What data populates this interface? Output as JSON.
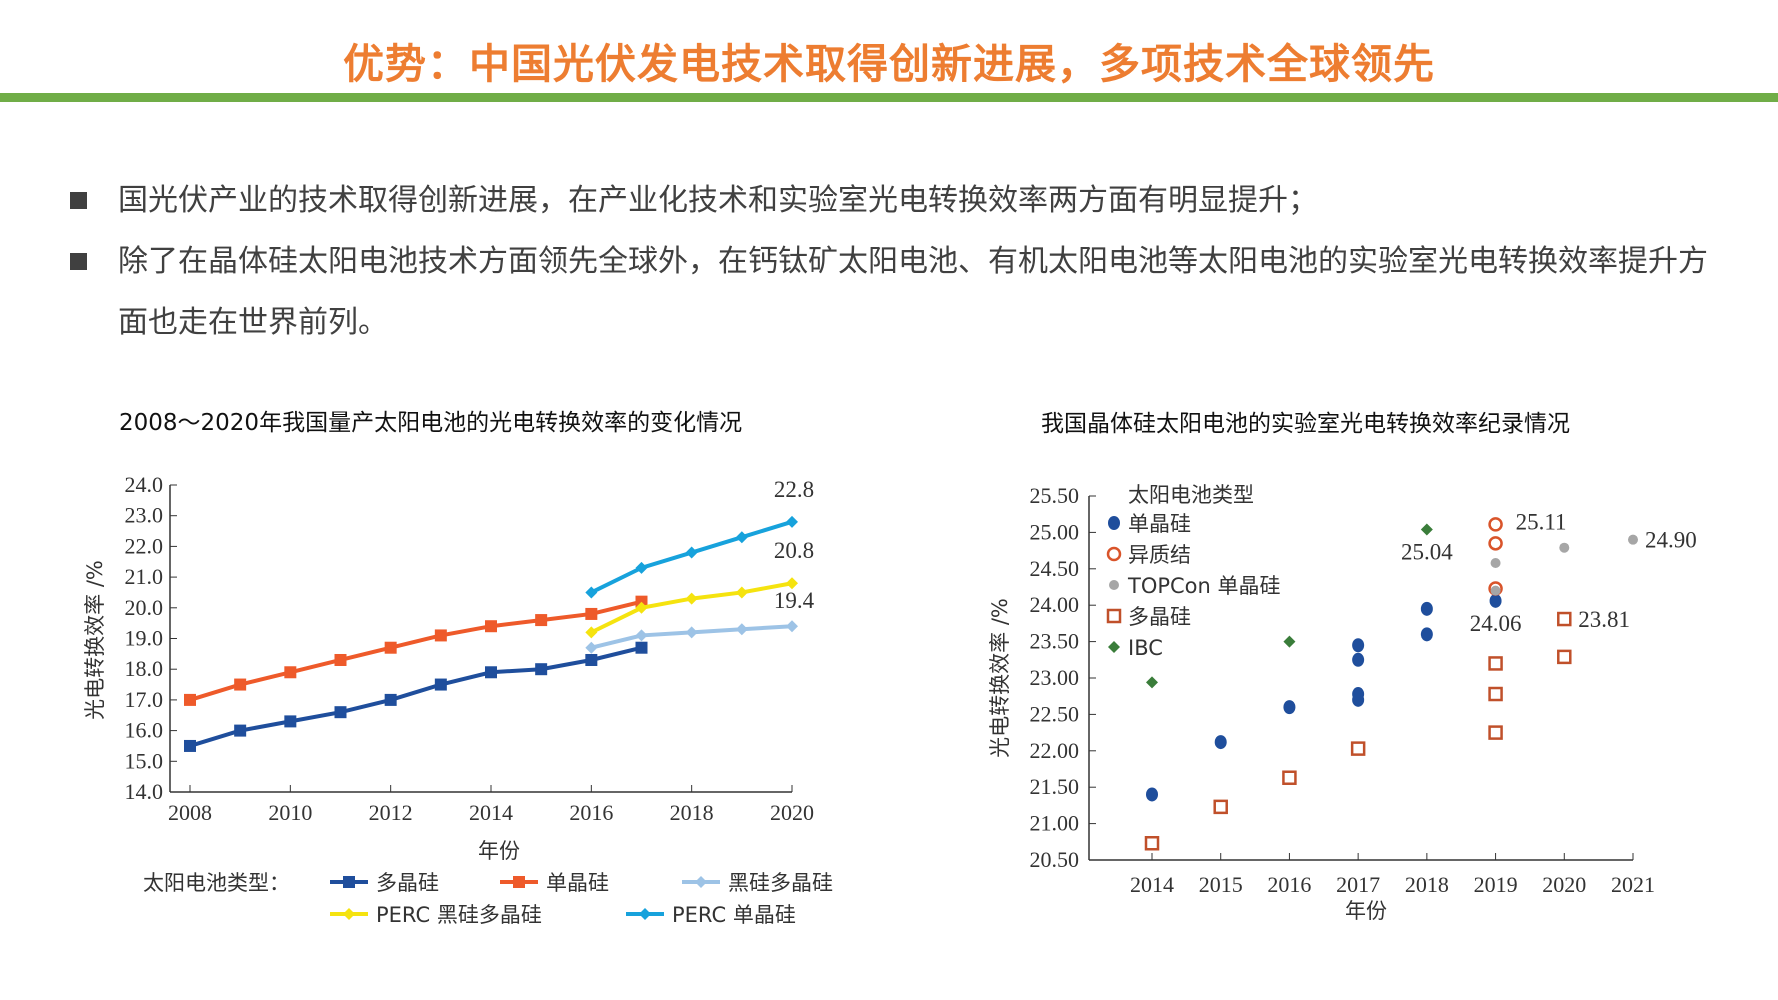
{
  "header": {
    "title": "优势：中国光伏发电技术取得创新进展，多项技术全球领先",
    "accent_color": "#ED7D31",
    "bar_color": "#70AD47"
  },
  "bullets": [
    "国光伏产业的技术取得创新进展，在产业化技术和实验室光电转换效率两方面有明显提升；",
    "除了在晶体硅太阳电池技术方面领先全球外，在钙钛矿太阳电池、有机太阳电池等太阳电池的实验室光电转换效率提升方面也走在世界前列。"
  ],
  "chart_data": [
    {
      "type": "line",
      "title": "2008～2020年我国量产太阳电池的光电转换效率的变化情况",
      "xlabel": "年份",
      "ylabel": "光电转换效率 /%",
      "xlim": [
        2008,
        2020
      ],
      "ylim": [
        14.0,
        24.0
      ],
      "xticks": [
        "2008",
        "2010",
        "2012",
        "2014",
        "2016",
        "2018",
        "2020"
      ],
      "yticks": [
        "14.0",
        "15.0",
        "16.0",
        "17.0",
        "18.0",
        "19.0",
        "20.0",
        "21.0",
        "22.0",
        "23.0",
        "24.0"
      ],
      "legend_title": "太阳电池类型：",
      "legend_position": "bottom",
      "series": [
        {
          "name": "多晶硅",
          "color": "#1F4E9C",
          "marker": "square",
          "x": [
            2008,
            2009,
            2010,
            2011,
            2012,
            2013,
            2014,
            2015,
            2016,
            2017
          ],
          "y": [
            15.5,
            16.0,
            16.3,
            16.6,
            17.0,
            17.5,
            17.9,
            18.0,
            18.3,
            18.7
          ]
        },
        {
          "name": "单晶硅",
          "color": "#EE5A2A",
          "marker": "square",
          "x": [
            2008,
            2009,
            2010,
            2011,
            2012,
            2013,
            2014,
            2015,
            2016,
            2017
          ],
          "y": [
            17.0,
            17.5,
            17.9,
            18.3,
            18.7,
            19.1,
            19.4,
            19.6,
            19.8,
            20.2
          ]
        },
        {
          "name": "黑硅多晶硅",
          "color": "#9DC3E6",
          "marker": "diamond",
          "x": [
            2016,
            2017,
            2018,
            2019,
            2020
          ],
          "y": [
            18.7,
            19.1,
            19.2,
            19.3,
            19.4
          ]
        },
        {
          "name": "PERC 黑硅多晶硅",
          "color": "#F5E30F",
          "marker": "diamond",
          "x": [
            2016,
            2017,
            2018,
            2019,
            2020
          ],
          "y": [
            19.2,
            20.0,
            20.3,
            20.5,
            20.8
          ]
        },
        {
          "name": "PERC 单晶硅",
          "color": "#17A2DC",
          "marker": "diamond",
          "x": [
            2016,
            2017,
            2018,
            2019,
            2020
          ],
          "y": [
            20.5,
            21.3,
            21.8,
            22.3,
            22.8
          ]
        }
      ],
      "annotations": [
        "22.8",
        "20.8",
        "19.4"
      ]
    },
    {
      "type": "scatter",
      "title": "我国晶体硅太阳电池的实验室光电转换效率纪录情况",
      "xlabel": "年份",
      "ylabel": "光电转换效率 /%",
      "xlim": [
        2013,
        2021
      ],
      "ylim": [
        20.5,
        25.5
      ],
      "xticks": [
        "2014",
        "2015",
        "2016",
        "2017",
        "2018",
        "2019",
        "2020",
        "2021"
      ],
      "yticks": [
        "20.50",
        "21.00",
        "21.50",
        "22.00",
        "22.50",
        "23.00",
        "23.50",
        "24.00",
        "24.50",
        "25.00",
        "25.50"
      ],
      "legend_title": "太阳电池类型",
      "legend_position": "top-left",
      "series": [
        {
          "name": "单晶硅",
          "color": "#1F4E9C",
          "marker": "filled-circle",
          "x": [
            2014,
            2015,
            2016,
            2017,
            2017,
            2017,
            2017,
            2018,
            2018,
            2019
          ],
          "y": [
            21.4,
            22.12,
            22.6,
            23.45,
            23.25,
            22.78,
            22.7,
            23.95,
            23.6,
            24.06
          ]
        },
        {
          "name": "异质结",
          "color": "#D9542A",
          "marker": "open-circle",
          "x": [
            2019,
            2019,
            2019
          ],
          "y": [
            25.11,
            24.85,
            24.23
          ]
        },
        {
          "name": "TOPCon 单晶硅",
          "color": "#A6A6A6",
          "marker": "small-circle",
          "x": [
            2019,
            2019,
            2020,
            2021
          ],
          "y": [
            24.58,
            24.2,
            24.79,
            24.9
          ]
        },
        {
          "name": "多晶硅",
          "color": "#C0502A",
          "marker": "open-square",
          "x": [
            2014,
            2015,
            2016,
            2017,
            2019,
            2019,
            2019,
            2020,
            2020
          ],
          "y": [
            20.73,
            21.23,
            21.63,
            22.03,
            23.2,
            22.78,
            22.25,
            23.81,
            23.29
          ]
        },
        {
          "name": "IBC",
          "color": "#3A7D3A",
          "marker": "diamond",
          "x": [
            2014,
            2016,
            2018
          ],
          "y": [
            22.94,
            23.5,
            25.04
          ]
        }
      ],
      "annotations": [
        "25.04",
        "25.11",
        "24.06",
        "23.81",
        "24.90"
      ]
    }
  ]
}
